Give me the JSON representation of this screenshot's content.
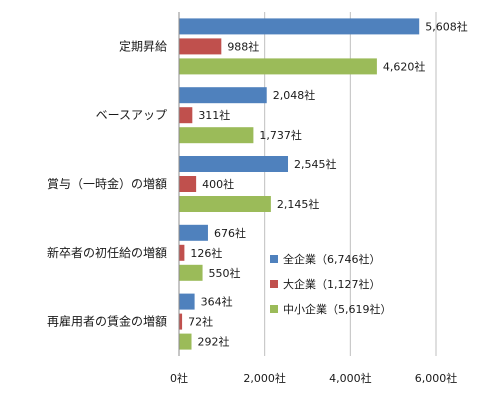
{
  "chart_data": {
    "type": "bar",
    "orientation": "horizontal",
    "categories": [
      "定期昇給",
      "ベースアップ",
      "賞与（一時金）の増額",
      "新卒者の初任給の増額",
      "再雇用者の賃金の増額"
    ],
    "series": [
      {
        "name": "全企業（6,746社）",
        "color": "#4f81bd",
        "values": [
          5608,
          2048,
          2545,
          676,
          364
        ],
        "labels": [
          "5,608社",
          "2,048社",
          "2,545社",
          "676社",
          "364社"
        ]
      },
      {
        "name": "大企業（1,127社）",
        "color": "#c0504d",
        "values": [
          988,
          311,
          400,
          126,
          72
        ],
        "labels": [
          "988社",
          "311社",
          "400社",
          "126社",
          "72社"
        ]
      },
      {
        "name": "中小企業（5,619社）",
        "color": "#9bbb59",
        "values": [
          4620,
          1737,
          2145,
          550,
          292
        ],
        "labels": [
          "4,620社",
          "1,737社",
          "2,145社",
          "550社",
          "292社"
        ]
      }
    ],
    "xlim": [
      0,
      6000
    ],
    "xticks": [
      0,
      2000,
      4000,
      6000
    ],
    "xtick_labels": [
      "0社",
      "2,000社",
      "4,000社",
      "6,000社"
    ],
    "grid": "vertical",
    "legend_position": "bottom-right"
  }
}
